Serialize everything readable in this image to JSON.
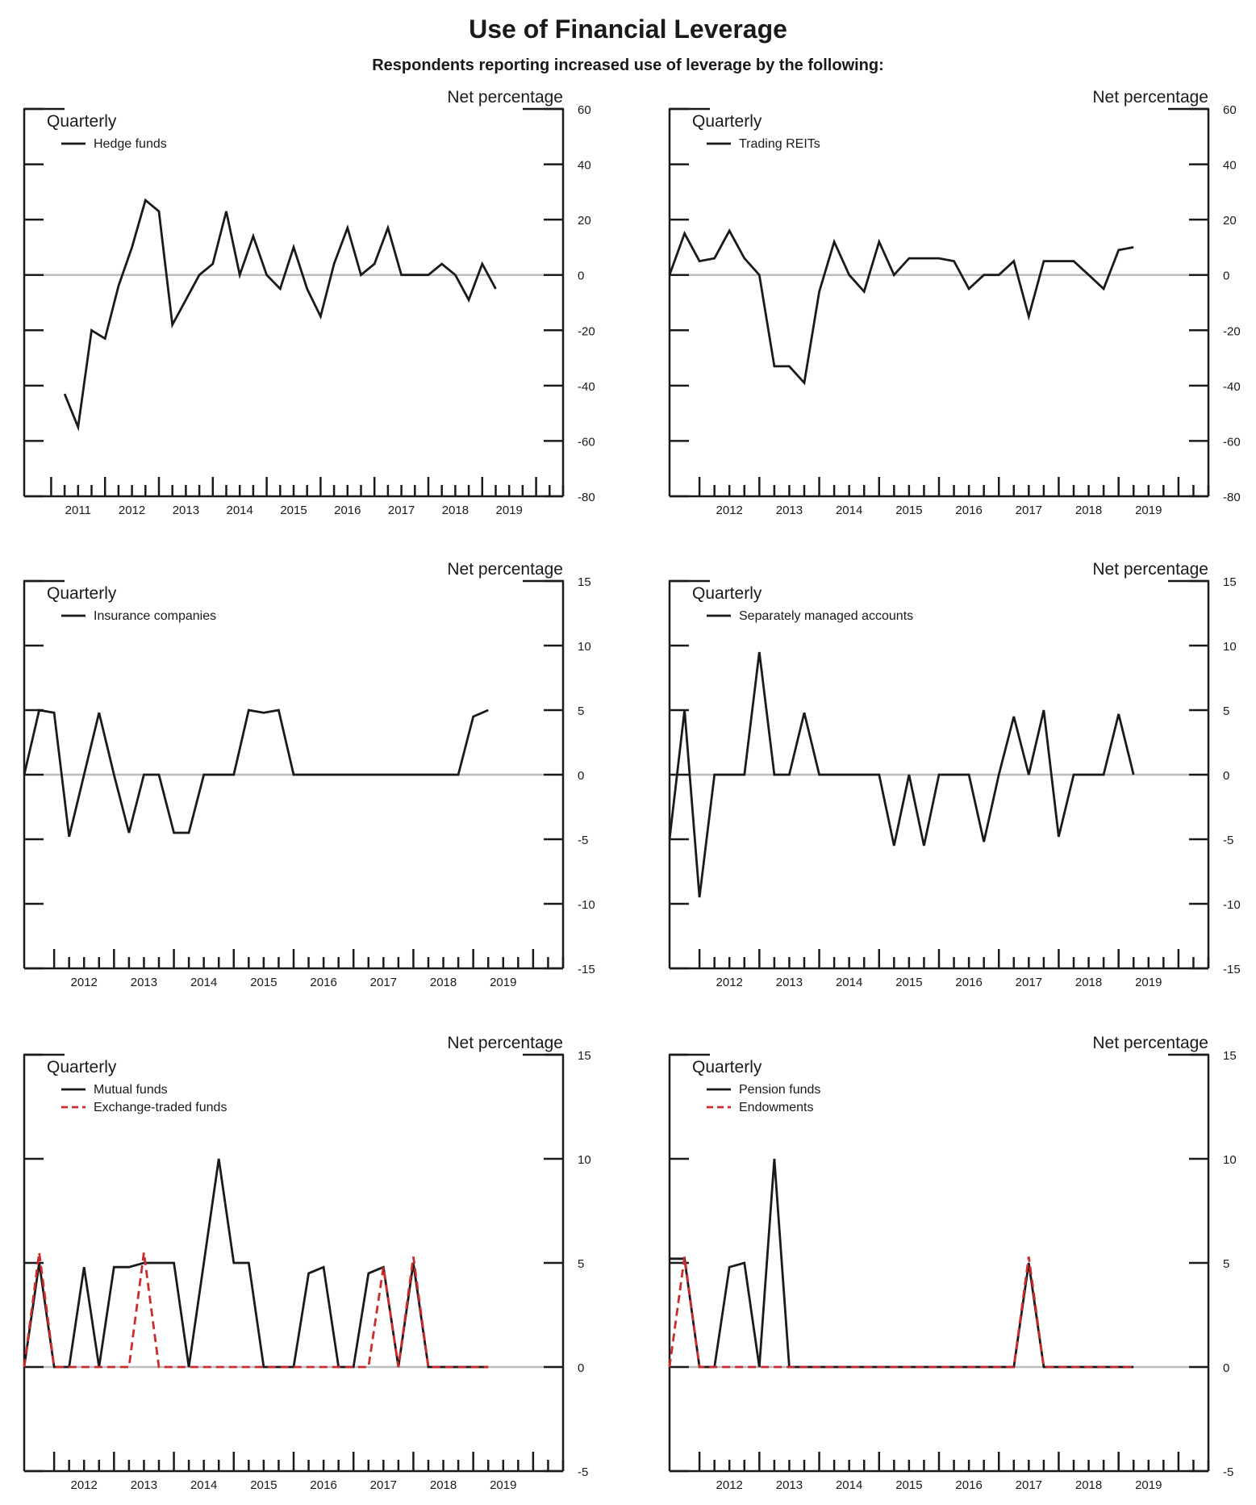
{
  "title": "Use of Financial Leverage",
  "subtitle": "Respondents reporting increased use of leverage by the following:",
  "chart_data": [
    {
      "type": "line",
      "frequency": "Quarterly",
      "ylabel": "Net percentage",
      "ylim": [
        -80,
        60
      ],
      "yticks": [
        60,
        40,
        20,
        0,
        -20,
        -40,
        -60,
        -80
      ],
      "xlim": [
        2010.5,
        2020.5
      ],
      "year_labels": [
        "2011",
        "2012",
        "2013",
        "2014",
        "2015",
        "2016",
        "2017",
        "2018",
        "2019"
      ],
      "legend": "top-left",
      "series": [
        {
          "name": "Hedge funds",
          "color": "#1a1a1a",
          "dash": false,
          "x": [
            2011.25,
            2011.5,
            2011.75,
            2012.0,
            2012.25,
            2012.5,
            2012.75,
            2013.0,
            2013.25,
            2013.5,
            2013.75,
            2014.0,
            2014.25,
            2014.5,
            2014.75,
            2015.0,
            2015.25,
            2015.5,
            2015.75,
            2016.0,
            2016.25,
            2016.5,
            2016.75,
            2017.0,
            2017.25,
            2017.5,
            2017.75,
            2018.0,
            2018.25,
            2018.5,
            2018.75,
            2019.0,
            2019.25
          ],
          "y": [
            -43,
            -55,
            -20,
            -23,
            -4,
            10,
            27,
            23,
            -18,
            -9,
            0,
            4,
            23,
            0,
            14,
            0,
            -5,
            10,
            -5,
            -15,
            4,
            17,
            0,
            4,
            17,
            0,
            0,
            0,
            4,
            0,
            -9,
            4,
            -5
          ]
        }
      ]
    },
    {
      "type": "line",
      "frequency": "Quarterly",
      "ylabel": "Net percentage",
      "ylim": [
        -80,
        60
      ],
      "yticks": [
        60,
        40,
        20,
        0,
        -20,
        -40,
        -60,
        -80
      ],
      "xlim": [
        2011.5,
        2020.5
      ],
      "year_labels": [
        "2012",
        "2013",
        "2014",
        "2015",
        "2016",
        "2017",
        "2018",
        "2019"
      ],
      "legend": "top-left",
      "series": [
        {
          "name": "Trading REITs",
          "color": "#1a1a1a",
          "dash": false,
          "x": [
            2011.5,
            2011.75,
            2012.0,
            2012.25,
            2012.5,
            2012.75,
            2013.0,
            2013.25,
            2013.5,
            2013.75,
            2014.0,
            2014.25,
            2014.5,
            2014.75,
            2015.0,
            2015.25,
            2015.5,
            2015.75,
            2016.0,
            2016.25,
            2016.5,
            2016.75,
            2017.0,
            2017.25,
            2017.5,
            2017.75,
            2018.0,
            2018.25,
            2018.5,
            2018.75,
            2019.0,
            2019.25
          ],
          "y": [
            0,
            15,
            5,
            6,
            16,
            6,
            0,
            -33,
            -33,
            -39,
            -6,
            12,
            0,
            -6,
            12,
            0,
            6,
            6,
            6,
            5,
            -5,
            0,
            0,
            5,
            -15,
            5,
            5,
            5,
            0,
            -5,
            9,
            10
          ]
        }
      ]
    },
    {
      "type": "line",
      "frequency": "Quarterly",
      "ylabel": "Net percentage",
      "ylim": [
        -15,
        15
      ],
      "yticks": [
        15,
        10,
        5,
        0,
        -5,
        -10,
        -15
      ],
      "xlim": [
        2011.5,
        2020.5
      ],
      "year_labels": [
        "2012",
        "2013",
        "2014",
        "2015",
        "2016",
        "2017",
        "2018",
        "2019"
      ],
      "legend": "top-left",
      "series": [
        {
          "name": "Insurance companies",
          "color": "#1a1a1a",
          "dash": false,
          "x": [
            2011.5,
            2011.75,
            2012.0,
            2012.25,
            2012.5,
            2012.75,
            2013.0,
            2013.25,
            2013.5,
            2013.75,
            2014.0,
            2014.25,
            2014.5,
            2014.75,
            2015.0,
            2015.25,
            2015.5,
            2015.75,
            2016.0,
            2016.25,
            2016.5,
            2016.75,
            2017.0,
            2017.25,
            2017.5,
            2017.75,
            2018.0,
            2018.25,
            2018.5,
            2018.75,
            2019.0,
            2019.25
          ],
          "y": [
            0,
            5,
            4.8,
            -4.8,
            0,
            4.8,
            0,
            -4.5,
            0,
            0,
            -4.5,
            -4.5,
            0,
            0,
            0,
            5,
            4.8,
            5,
            0,
            0,
            0,
            0,
            0,
            0,
            0,
            0,
            0,
            0,
            0,
            0,
            4.5,
            5
          ]
        }
      ]
    },
    {
      "type": "line",
      "frequency": "Quarterly",
      "ylabel": "Net percentage",
      "ylim": [
        -15,
        15
      ],
      "yticks": [
        15,
        10,
        5,
        0,
        -5,
        -10,
        -15
      ],
      "xlim": [
        2011.5,
        2020.5
      ],
      "year_labels": [
        "2012",
        "2013",
        "2014",
        "2015",
        "2016",
        "2017",
        "2018",
        "2019"
      ],
      "legend": "top-left",
      "series": [
        {
          "name": "Separately managed accounts",
          "color": "#1a1a1a",
          "dash": false,
          "x": [
            2011.5,
            2011.75,
            2012.0,
            2012.25,
            2012.5,
            2012.75,
            2013.0,
            2013.25,
            2013.5,
            2013.75,
            2014.0,
            2014.25,
            2014.5,
            2014.75,
            2015.0,
            2015.25,
            2015.5,
            2015.75,
            2016.0,
            2016.25,
            2016.5,
            2016.75,
            2017.0,
            2017.25,
            2017.5,
            2017.75,
            2018.0,
            2018.25,
            2018.5,
            2018.75,
            2019.0,
            2019.25
          ],
          "y": [
            -5,
            5,
            -9.5,
            0,
            0,
            0,
            9.5,
            0,
            0,
            4.8,
            0,
            0,
            0,
            0,
            0,
            -5.5,
            0,
            -5.5,
            0,
            0,
            0,
            -5.2,
            0,
            4.5,
            0,
            5,
            -4.8,
            0,
            0,
            0,
            4.7,
            0
          ]
        }
      ]
    },
    {
      "type": "line",
      "frequency": "Quarterly",
      "ylabel": "Net percentage",
      "ylim": [
        -5,
        15
      ],
      "yticks": [
        15,
        10,
        5,
        0,
        -5
      ],
      "xlim": [
        2011.5,
        2020.5
      ],
      "year_labels": [
        "2012",
        "2013",
        "2014",
        "2015",
        "2016",
        "2017",
        "2018",
        "2019"
      ],
      "legend": "top-left",
      "series": [
        {
          "name": "Mutual funds",
          "color": "#1a1a1a",
          "dash": false,
          "x": [
            2011.5,
            2011.75,
            2012.0,
            2012.25,
            2012.5,
            2012.75,
            2013.0,
            2013.25,
            2013.5,
            2013.75,
            2014.0,
            2014.25,
            2014.5,
            2014.75,
            2015.0,
            2015.25,
            2015.5,
            2015.75,
            2016.0,
            2016.25,
            2016.5,
            2016.75,
            2017.0,
            2017.25,
            2017.5,
            2017.75,
            2018.0,
            2018.25,
            2018.5,
            2018.75,
            2019.0,
            2019.25
          ],
          "y": [
            0,
            5,
            0,
            0,
            4.8,
            0,
            4.8,
            4.8,
            5,
            5,
            5,
            0,
            5,
            10,
            5,
            5,
            0,
            0,
            0,
            4.5,
            4.8,
            0,
            0,
            4.5,
            4.8,
            0,
            5,
            0,
            0,
            0,
            0,
            0
          ]
        },
        {
          "name": "Exchange-traded funds",
          "color": "#cc2b2b",
          "dash": true,
          "x": [
            2011.5,
            2011.75,
            2012.0,
            2012.25,
            2012.5,
            2012.75,
            2013.0,
            2013.25,
            2013.5,
            2013.75,
            2014.0,
            2014.25,
            2014.5,
            2014.75,
            2015.0,
            2015.25,
            2015.5,
            2015.75,
            2016.0,
            2016.25,
            2016.5,
            2016.75,
            2017.0,
            2017.25,
            2017.5,
            2017.75,
            2018.0,
            2018.25,
            2018.5,
            2018.75,
            2019.0,
            2019.25
          ],
          "y": [
            0,
            5.5,
            0,
            0,
            0,
            0,
            0,
            0,
            5.5,
            0,
            0,
            0,
            0,
            0,
            0,
            0,
            0,
            0,
            0,
            0,
            0,
            0,
            0,
            0,
            4.8,
            0,
            5.3,
            0,
            0,
            0,
            0,
            0
          ]
        }
      ]
    },
    {
      "type": "line",
      "frequency": "Quarterly",
      "ylabel": "Net percentage",
      "ylim": [
        -5,
        15
      ],
      "yticks": [
        15,
        10,
        5,
        0,
        -5
      ],
      "xlim": [
        2011.5,
        2020.5
      ],
      "year_labels": [
        "2012",
        "2013",
        "2014",
        "2015",
        "2016",
        "2017",
        "2018",
        "2019"
      ],
      "legend": "top-left",
      "series": [
        {
          "name": "Pension funds",
          "color": "#1a1a1a",
          "dash": false,
          "x": [
            2011.5,
            2011.75,
            2012.0,
            2012.25,
            2012.5,
            2012.75,
            2013.0,
            2013.25,
            2013.5,
            2013.75,
            2014.0,
            2014.25,
            2014.5,
            2014.75,
            2015.0,
            2015.25,
            2015.5,
            2015.75,
            2016.0,
            2016.25,
            2016.5,
            2016.75,
            2017.0,
            2017.25,
            2017.5,
            2017.75,
            2018.0,
            2018.25,
            2018.5,
            2018.75,
            2019.0,
            2019.25
          ],
          "y": [
            5.2,
            5.2,
            0,
            0,
            4.8,
            5,
            0,
            10,
            0,
            0,
            0,
            0,
            0,
            0,
            0,
            0,
            0,
            0,
            0,
            0,
            0,
            0,
            0,
            0,
            5,
            0,
            0,
            0,
            0,
            0,
            0,
            0
          ]
        },
        {
          "name": "Endowments",
          "color": "#cc2b2b",
          "dash": true,
          "x": [
            2011.5,
            2011.75,
            2012.0,
            2012.25,
            2012.5,
            2012.75,
            2013.0,
            2013.25,
            2013.5,
            2013.75,
            2014.0,
            2014.25,
            2014.5,
            2014.75,
            2015.0,
            2015.25,
            2015.5,
            2015.75,
            2016.0,
            2016.25,
            2016.5,
            2016.75,
            2017.0,
            2017.25,
            2017.5,
            2017.75,
            2018.0,
            2018.25,
            2018.5,
            2018.75,
            2019.0,
            2019.25
          ],
          "y": [
            0,
            5.3,
            0,
            0,
            0,
            0,
            0,
            0,
            0,
            0,
            0,
            0,
            0,
            0,
            0,
            0,
            0,
            0,
            0,
            0,
            0,
            0,
            0,
            0,
            5.3,
            0,
            0,
            0,
            0,
            0,
            0,
            0
          ]
        }
      ]
    }
  ]
}
